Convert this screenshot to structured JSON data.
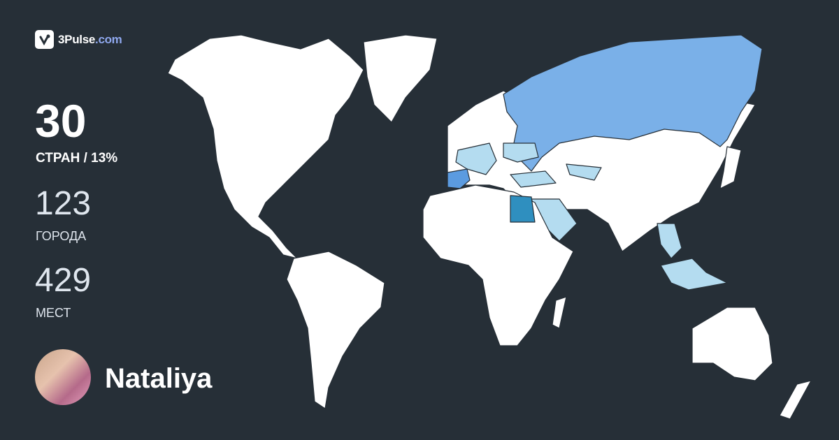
{
  "logo": {
    "brand": "3Pulse",
    "domain": ".com",
    "icon": "pulse-check-icon"
  },
  "stats": {
    "countries": {
      "value": "30",
      "label": "СТРАН / 13%"
    },
    "cities": {
      "value": "123",
      "label": "ГОРОДА"
    },
    "places": {
      "value": "429",
      "label": "МЕСТ"
    }
  },
  "user": {
    "name": "Nataliya"
  },
  "colors": {
    "background": "#262f37",
    "unvisited": "#ffffff",
    "visited_light": "#b4dcf0",
    "visited_mid": "#7ab0e8",
    "visited_strong": "#5b9be0",
    "visited_dark": "#2f8fbf"
  },
  "map": {
    "highlighted_regions": [
      "Russia",
      "Spain",
      "Egypt",
      "Saudi Arabia",
      "Turkey",
      "Greece",
      "Italy",
      "France",
      "Ukraine",
      "Southeast Asia",
      "Indonesia"
    ]
  }
}
